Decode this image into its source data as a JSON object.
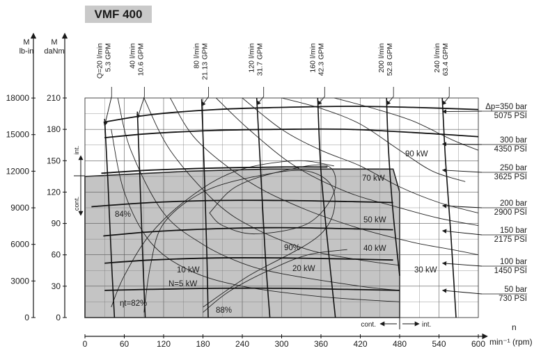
{
  "chart_data": {
    "type": "line",
    "title": "VMF 400",
    "x_axis": {
      "symbol": "n",
      "label": "min⁻¹ (rpm)",
      "ticks": [
        0,
        60,
        120,
        180,
        240,
        300,
        360,
        420,
        480,
        540,
        600
      ],
      "range": [
        0,
        600
      ]
    },
    "y_axis_danm": {
      "label": "M daNm",
      "ticks": [
        0,
        30,
        60,
        90,
        120,
        150,
        180,
        210
      ],
      "range": [
        0,
        210
      ]
    },
    "y_axis_lbin": {
      "label": "M lb-in",
      "ticks": [
        0,
        3000,
        6000,
        9000,
        12000,
        15000,
        18000
      ]
    },
    "pressure_curves": [
      {
        "bar": "Δp=350 bar",
        "psi": "5075 PSI",
        "points": [
          [
            30,
            187
          ],
          [
            100,
            194
          ],
          [
            200,
            199
          ],
          [
            300,
            201
          ],
          [
            400,
            202
          ],
          [
            500,
            201
          ],
          [
            600,
            199
          ]
        ]
      },
      {
        "bar": "300 bar",
        "psi": "4350 PSI",
        "points": [
          [
            30,
            172
          ],
          [
            100,
            176
          ],
          [
            200,
            179
          ],
          [
            300,
            180
          ],
          [
            400,
            180
          ],
          [
            500,
            177
          ],
          [
            600,
            173
          ]
        ]
      },
      {
        "bar": "250 bar",
        "psi": "3625 PSI",
        "points": [
          [
            25,
            138
          ],
          [
            100,
            141
          ],
          [
            200,
            143
          ],
          [
            300,
            144
          ],
          [
            370,
            144
          ]
        ]
      },
      {
        "bar": "200 bar",
        "psi": "2900 PSI",
        "points": [
          [
            10,
            106
          ],
          [
            100,
            110
          ],
          [
            200,
            112
          ],
          [
            300,
            112
          ],
          [
            400,
            111
          ],
          [
            470,
            110
          ]
        ]
      },
      {
        "bar": "150 bar",
        "psi": "2175 PSI",
        "points": [
          [
            28,
            78
          ],
          [
            100,
            82
          ],
          [
            200,
            85
          ],
          [
            300,
            86
          ],
          [
            400,
            85
          ],
          [
            470,
            84
          ]
        ]
      },
      {
        "bar": "100 bar",
        "psi": "1450 PSI",
        "points": [
          [
            30,
            52
          ],
          [
            100,
            55
          ],
          [
            200,
            57
          ],
          [
            300,
            57
          ],
          [
            400,
            56
          ],
          [
            470,
            55
          ]
        ]
      },
      {
        "bar": "50 bar",
        "psi": "730 PSI",
        "points": [
          [
            30,
            26
          ],
          [
            100,
            27
          ],
          [
            200,
            28
          ],
          [
            300,
            28
          ],
          [
            400,
            27
          ],
          [
            480,
            26
          ]
        ]
      }
    ],
    "pressure_arrow_ends": [
      {
        "bar": "Δp=350 bar",
        "y": 197
      },
      {
        "bar": "300 bar",
        "y": 166
      },
      {
        "bar": "250 bar",
        "y": 141
      },
      {
        "bar": "200 bar",
        "y": 107
      },
      {
        "bar": "150 bar",
        "y": 83
      },
      {
        "bar": "100 bar",
        "y": 52
      },
      {
        "bar": "50 bar",
        "y": 26
      }
    ],
    "flow_lines": [
      {
        "lpm": "Q=20 l/min",
        "gpm": "5.3 GPM",
        "points": [
          [
            30,
            190
          ],
          [
            35,
            130
          ],
          [
            40,
            60
          ],
          [
            45,
            0
          ]
        ]
      },
      {
        "lpm": "40 l/min",
        "gpm": "10.6 GPM",
        "points": [
          [
            80,
            197
          ],
          [
            84,
            130
          ],
          [
            88,
            60
          ],
          [
            92,
            0
          ]
        ]
      },
      {
        "lpm": "80 l/min",
        "gpm": "21.13 GPM",
        "points": [
          [
            178,
            209
          ],
          [
            182,
            140
          ],
          [
            186,
            60
          ],
          [
            188,
            0
          ]
        ]
      },
      {
        "lpm": "120 l/min",
        "gpm": "31.7 GPM",
        "points": [
          [
            262,
            210
          ],
          [
            268,
            140
          ],
          [
            275,
            60
          ],
          [
            282,
            0
          ]
        ]
      },
      {
        "lpm": "160 l/min",
        "gpm": "42.3 GPM",
        "points": [
          [
            355,
            210
          ],
          [
            360,
            140
          ],
          [
            372,
            60
          ],
          [
            382,
            0
          ]
        ]
      },
      {
        "lpm": "200 l/min",
        "gpm": "52.8 GPM",
        "points": [
          [
            460,
            210
          ],
          [
            463,
            160
          ],
          [
            470,
            100
          ],
          [
            480,
            40
          ]
        ]
      },
      {
        "lpm": "240 l/min",
        "gpm": "63.4 GPM",
        "points": [
          [
            545,
            210
          ],
          [
            550,
            150
          ],
          [
            558,
            80
          ],
          [
            566,
            0
          ]
        ]
      }
    ],
    "flow_label_x": [
      30,
      80,
      178,
      262,
      355,
      460,
      545
    ],
    "power_curves": [
      {
        "label": "N=5 kW",
        "points": [
          [
            40,
            180
          ],
          [
            60,
            120
          ],
          [
            100,
            72
          ],
          [
            160,
            45
          ],
          [
            240,
            30
          ],
          [
            360,
            20
          ],
          [
            480,
            15
          ]
        ]
      },
      {
        "label": "10 kW",
        "points": [
          [
            50,
            210
          ],
          [
            70,
            160
          ],
          [
            120,
            100
          ],
          [
            180,
            70
          ],
          [
            240,
            52
          ],
          [
            300,
            42
          ],
          [
            420,
            30
          ],
          [
            480,
            26
          ]
        ]
      },
      {
        "label": "20 kW",
        "points": [
          [
            90,
            210
          ],
          [
            130,
            160
          ],
          [
            200,
            110
          ],
          [
            260,
            85
          ],
          [
            340,
            65
          ],
          [
            420,
            55
          ],
          [
            480,
            50
          ]
        ]
      },
      {
        "label": "30 kW",
        "points": [
          [
            130,
            210
          ],
          [
            170,
            170
          ],
          [
            250,
            130
          ],
          [
            330,
            105
          ],
          [
            420,
            85
          ],
          [
            500,
            72
          ],
          [
            560,
            65
          ],
          [
            600,
            60
          ]
        ]
      },
      {
        "label": "40 kW",
        "points": [
          [
            200,
            210
          ],
          [
            250,
            180
          ],
          [
            320,
            145
          ],
          [
            400,
            120
          ],
          [
            480,
            105
          ],
          [
            540,
            95
          ],
          [
            600,
            88
          ]
        ]
      },
      {
        "label": "50 kW",
        "points": [
          [
            240,
            210
          ],
          [
            300,
            180
          ],
          [
            360,
            160
          ],
          [
            420,
            145
          ],
          [
            480,
            125
          ],
          [
            540,
            110
          ],
          [
            600,
            100
          ]
        ]
      },
      {
        "label": "70 kW",
        "points": [
          [
            300,
            210
          ],
          [
            360,
            200
          ],
          [
            420,
            185
          ],
          [
            480,
            160
          ],
          [
            530,
            140
          ],
          [
            580,
            130
          ]
        ]
      },
      {
        "label": "90 kW",
        "points": [
          [
            380,
            210
          ],
          [
            440,
            200
          ],
          [
            500,
            188
          ],
          [
            560,
            170
          ],
          [
            600,
            160
          ]
        ]
      }
    ],
    "efficiency_contours": [
      {
        "label": "ηt=82%",
        "points": [
          [
            40,
            10
          ],
          [
            60,
            40
          ],
          [
            100,
            80
          ],
          [
            160,
            115
          ],
          [
            230,
            140
          ],
          [
            320,
            150
          ],
          [
            380,
            145
          ]
        ]
      },
      {
        "label": "84%",
        "points": [
          [
            90,
            5
          ],
          [
            100,
            50
          ],
          [
            120,
            90
          ],
          [
            180,
            120
          ],
          [
            260,
            135
          ],
          [
            340,
            140
          ],
          [
            380,
            120
          ],
          [
            360,
            80
          ],
          [
            250,
            40
          ],
          [
            180,
            10
          ]
        ]
      },
      {
        "label": "88%",
        "points": [
          [
            180,
            5
          ],
          [
            220,
            25
          ],
          [
            280,
            45
          ],
          [
            340,
            60
          ],
          [
            400,
            65
          ]
        ]
      },
      {
        "label": "90%",
        "points": [
          [
            190,
            100
          ],
          [
            230,
            125
          ],
          [
            300,
            140
          ],
          [
            370,
            145
          ],
          [
            380,
            120
          ],
          [
            340,
            90
          ],
          [
            260,
            80
          ],
          [
            210,
            88
          ],
          [
            190,
            100
          ]
        ]
      }
    ],
    "operating_boundary": [
      [
        0,
        135
      ],
      [
        160,
        140
      ],
      [
        280,
        142
      ],
      [
        470,
        142
      ],
      [
        480,
        120
      ],
      [
        480,
        0
      ],
      [
        0,
        0
      ]
    ],
    "labels": {
      "int_left": "int.",
      "cont_left": "cont.",
      "cont_bottom": "cont.",
      "int_bottom": "int."
    },
    "grid": true
  }
}
